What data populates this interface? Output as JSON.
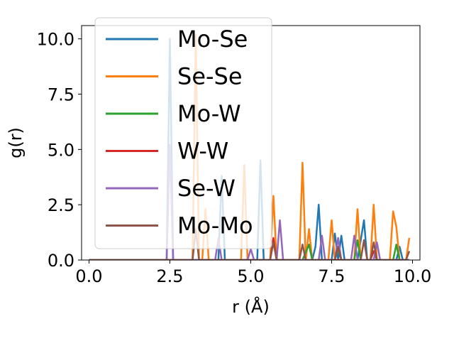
{
  "chart_data": {
    "type": "line",
    "xlabel": "r (Å)",
    "ylabel": "g(r)",
    "xlim": [
      -0.23,
      10.23
    ],
    "ylim": [
      0.0,
      10.6
    ],
    "xticks": [
      0.0,
      2.5,
      5.0,
      7.5,
      10.0
    ],
    "xtick_labels": [
      "0.0",
      "2.5",
      "5.0",
      "7.5",
      "10.0"
    ],
    "yticks": [
      0.0,
      2.5,
      5.0,
      7.5,
      10.0
    ],
    "ytick_labels": [
      "0.0",
      "2.5",
      "5.0",
      "7.5",
      "10.0"
    ],
    "grid": false,
    "legend_position": "upper-left",
    "series": [
      {
        "name": "Mo-Se",
        "color": "#1f77b4",
        "points": [
          [
            0,
            0
          ],
          [
            2.4,
            0
          ],
          [
            2.5,
            10.0
          ],
          [
            2.6,
            0
          ],
          [
            4.0,
            0
          ],
          [
            4.1,
            3.8
          ],
          [
            4.2,
            0
          ],
          [
            5.2,
            0
          ],
          [
            5.3,
            4.5
          ],
          [
            5.4,
            0
          ],
          [
            6.9,
            0
          ],
          [
            7.0,
            0.6
          ],
          [
            7.1,
            2.5
          ],
          [
            7.2,
            0
          ],
          [
            7.5,
            0
          ],
          [
            7.6,
            1.2
          ],
          [
            7.7,
            0
          ],
          [
            7.8,
            1.1
          ],
          [
            7.9,
            0
          ],
          [
            8.3,
            0
          ],
          [
            8.5,
            1.8
          ],
          [
            8.6,
            0
          ],
          [
            9.5,
            0
          ],
          [
            9.6,
            0.6
          ],
          [
            9.7,
            0
          ],
          [
            9.9,
            0
          ]
        ]
      },
      {
        "name": "Se-Se",
        "color": "#ff7f0e",
        "points": [
          [
            0,
            0
          ],
          [
            3.2,
            0
          ],
          [
            3.3,
            10.2
          ],
          [
            3.4,
            0
          ],
          [
            3.5,
            0
          ],
          [
            3.6,
            2.3
          ],
          [
            3.7,
            0
          ],
          [
            4.7,
            0
          ],
          [
            4.8,
            4.3
          ],
          [
            4.9,
            0
          ],
          [
            5.6,
            0
          ],
          [
            5.7,
            2.9
          ],
          [
            5.8,
            0
          ],
          [
            6.5,
            0
          ],
          [
            6.6,
            4.4
          ],
          [
            6.7,
            0
          ],
          [
            6.8,
            1.4
          ],
          [
            6.9,
            0
          ],
          [
            7.4,
            0
          ],
          [
            7.5,
            1.8
          ],
          [
            7.6,
            0
          ],
          [
            8.2,
            0
          ],
          [
            8.3,
            2.3
          ],
          [
            8.4,
            0
          ],
          [
            8.7,
            0
          ],
          [
            8.8,
            2.5
          ],
          [
            8.9,
            0
          ],
          [
            9.3,
            0
          ],
          [
            9.4,
            2.2
          ],
          [
            9.5,
            1.5
          ],
          [
            9.6,
            0
          ],
          [
            9.8,
            0
          ],
          [
            9.9,
            1.0
          ]
        ]
      },
      {
        "name": "Mo-W",
        "color": "#2ca02c",
        "points": [
          [
            0,
            0
          ],
          [
            6.6,
            0
          ],
          [
            6.8,
            0.7
          ],
          [
            6.9,
            0
          ],
          [
            7.6,
            0
          ],
          [
            7.7,
            0.5
          ],
          [
            7.8,
            0
          ],
          [
            8.2,
            0
          ],
          [
            8.3,
            0.9
          ],
          [
            8.4,
            0
          ],
          [
            9.4,
            0
          ],
          [
            9.5,
            0.7
          ],
          [
            9.6,
            0
          ],
          [
            9.9,
            0
          ]
        ]
      },
      {
        "name": "W-W",
        "color": "#d62728",
        "points": [
          [
            0,
            0
          ],
          [
            5.6,
            0
          ],
          [
            5.7,
            1.0
          ],
          [
            5.8,
            0
          ],
          [
            8.7,
            0
          ],
          [
            8.8,
            0.4
          ],
          [
            8.9,
            0
          ],
          [
            9.9,
            0
          ]
        ]
      },
      {
        "name": "Se-W",
        "color": "#9467bd",
        "points": [
          [
            0,
            0
          ],
          [
            2.4,
            0
          ],
          [
            2.5,
            5.2
          ],
          [
            2.6,
            0
          ],
          [
            3.9,
            0
          ],
          [
            4.0,
            1.0
          ],
          [
            4.1,
            0
          ],
          [
            4.9,
            0
          ],
          [
            5.0,
            0.5
          ],
          [
            5.1,
            0
          ],
          [
            5.8,
            0
          ],
          [
            5.9,
            1.8
          ],
          [
            6.0,
            0
          ],
          [
            7.1,
            0
          ],
          [
            7.2,
            1.1
          ],
          [
            7.3,
            0
          ],
          [
            7.6,
            0
          ],
          [
            7.7,
            1.0
          ],
          [
            7.8,
            0
          ],
          [
            8.1,
            0
          ],
          [
            8.2,
            1.1
          ],
          [
            8.3,
            0
          ],
          [
            8.8,
            0
          ],
          [
            8.9,
            0.8
          ],
          [
            9.0,
            0
          ],
          [
            9.9,
            0
          ]
        ]
      },
      {
        "name": "Mo-Mo",
        "color": "#8c564b",
        "points": [
          [
            0,
            0
          ],
          [
            3.2,
            0
          ],
          [
            3.3,
            1.4
          ],
          [
            3.4,
            0
          ],
          [
            5.6,
            0
          ],
          [
            5.7,
            0.8
          ],
          [
            5.8,
            0
          ],
          [
            6.5,
            0
          ],
          [
            6.6,
            0.7
          ],
          [
            6.7,
            0
          ],
          [
            7.6,
            0
          ],
          [
            7.7,
            0.6
          ],
          [
            7.8,
            0
          ],
          [
            8.4,
            0
          ],
          [
            8.5,
            0.9
          ],
          [
            8.6,
            0
          ],
          [
            8.7,
            0
          ],
          [
            8.8,
            0.8
          ],
          [
            8.9,
            0
          ],
          [
            9.8,
            0
          ],
          [
            9.9,
            0.4
          ]
        ]
      }
    ]
  }
}
